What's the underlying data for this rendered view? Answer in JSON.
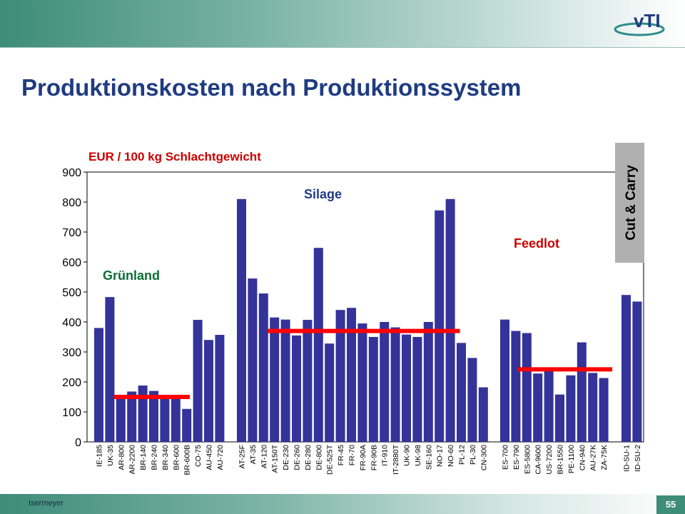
{
  "slide": {
    "title": "Produktionskosten nach Produktionssystem",
    "author": "Isermeyer",
    "page_number": "55",
    "logo_text": "vTI"
  },
  "colors": {
    "bar": "#333399",
    "average_line": "#ff0000",
    "title": "#1f3b82",
    "ylabel": "#cc0000",
    "label_gruenland": "#0b6e35",
    "label_silage": "#1f3b82",
    "label_feedlot": "#cc0000",
    "cut_box_fill": "#b0b0b0"
  },
  "chart_data": {
    "type": "bar",
    "title": "",
    "ylabel": "EUR / 100 kg Schlachtgewicht",
    "xlabel": "",
    "ylim": [
      0,
      900
    ],
    "yticks": [
      "0",
      "100",
      "200",
      "300",
      "400",
      "500",
      "600",
      "700",
      "800",
      "900"
    ],
    "groups": [
      {
        "label": "Grünland",
        "average": 150,
        "categories": [
          "IE-185",
          "UK-35",
          "AR-800",
          "AR-2200",
          "BR-140",
          "BR-240",
          "BR-340",
          "BR-600",
          "BR-600B",
          "CO-75",
          "AU-450",
          "AU-720"
        ],
        "values": [
          380,
          483,
          155,
          168,
          188,
          170,
          155,
          155,
          110,
          407,
          340,
          357
        ]
      },
      {
        "label": "Silage",
        "average": 370,
        "categories": [
          "AT-25F",
          "AT-35",
          "AT-120",
          "AT-150T",
          "DE-230",
          "DE-260",
          "DE-280",
          "DE-800",
          "DE-525T",
          "FR-45",
          "FR-70",
          "FR-90A",
          "FR-90B",
          "IT-910",
          "IT-2880T",
          "UK-90",
          "UK-98",
          "SE-160",
          "NO-17",
          "NO-60",
          "PL-12",
          "PL-30",
          "CN-300"
        ],
        "values": [
          810,
          545,
          495,
          415,
          408,
          355,
          407,
          647,
          328,
          440,
          447,
          395,
          350,
          400,
          382,
          358,
          350,
          400,
          772,
          810,
          330,
          280,
          182
        ]
      },
      {
        "label": "Feedlot",
        "average": 242,
        "categories": [
          "ES-700",
          "ES-790",
          "ES-5800",
          "CA-9600",
          "US-7200",
          "BR-1550",
          "PE-1100",
          "CN-940",
          "AU-27K",
          "ZA-75K"
        ],
        "values": [
          408,
          370,
          363,
          228,
          240,
          158,
          222,
          332,
          230,
          213
        ]
      },
      {
        "label": "Cut & Carry",
        "average": null,
        "categories": [
          "ID-SU-1",
          "ID-SU-2"
        ],
        "values": [
          490,
          468
        ]
      }
    ],
    "grid": false,
    "legend": "none"
  }
}
